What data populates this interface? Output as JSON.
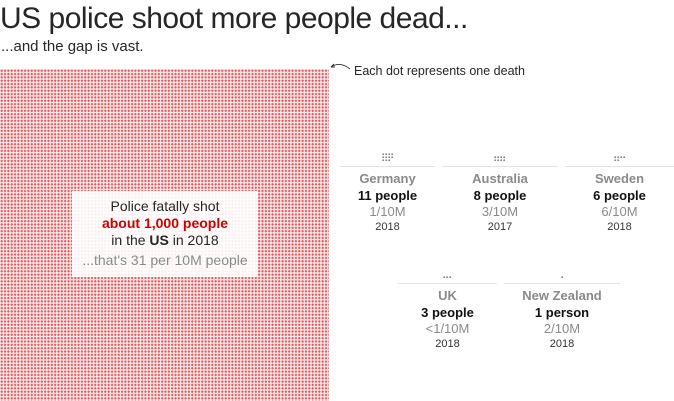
{
  "title": "US police shoot more people dead...",
  "subtitle": "...and the gap is vast.",
  "legend_note": "Each dot represents one death",
  "colors": {
    "us_dot": "#e0575b",
    "country_dot": "#888888",
    "highlight": "#cc0000"
  },
  "us": {
    "line1": "Police fatally shot",
    "highlight": "about 1,000 people",
    "line3_pre": "in the ",
    "line3_bold": "US",
    "line3_post": " in 2018",
    "rate": "...that's 31 per 10M people",
    "deaths": 1000
  },
  "chart_data": {
    "type": "dot-matrix",
    "unit": "one death per dot",
    "countries": [
      {
        "name": "Germany",
        "people": "11 people",
        "count": 11,
        "rate": "1/10M",
        "year": "2018"
      },
      {
        "name": "Australia",
        "people": "8 people",
        "count": 8,
        "rate": "3/10M",
        "year": "2017"
      },
      {
        "name": "Sweden",
        "people": "6 people",
        "count": 6,
        "rate": "6/10M",
        "year": "2018"
      },
      {
        "name": "UK",
        "people": "3 people",
        "count": 3,
        "rate": "<1/10M",
        "year": "2018"
      },
      {
        "name": "New Zealand",
        "people": "1 person",
        "count": 1,
        "rate": "2/10M",
        "year": "2018"
      }
    ]
  }
}
